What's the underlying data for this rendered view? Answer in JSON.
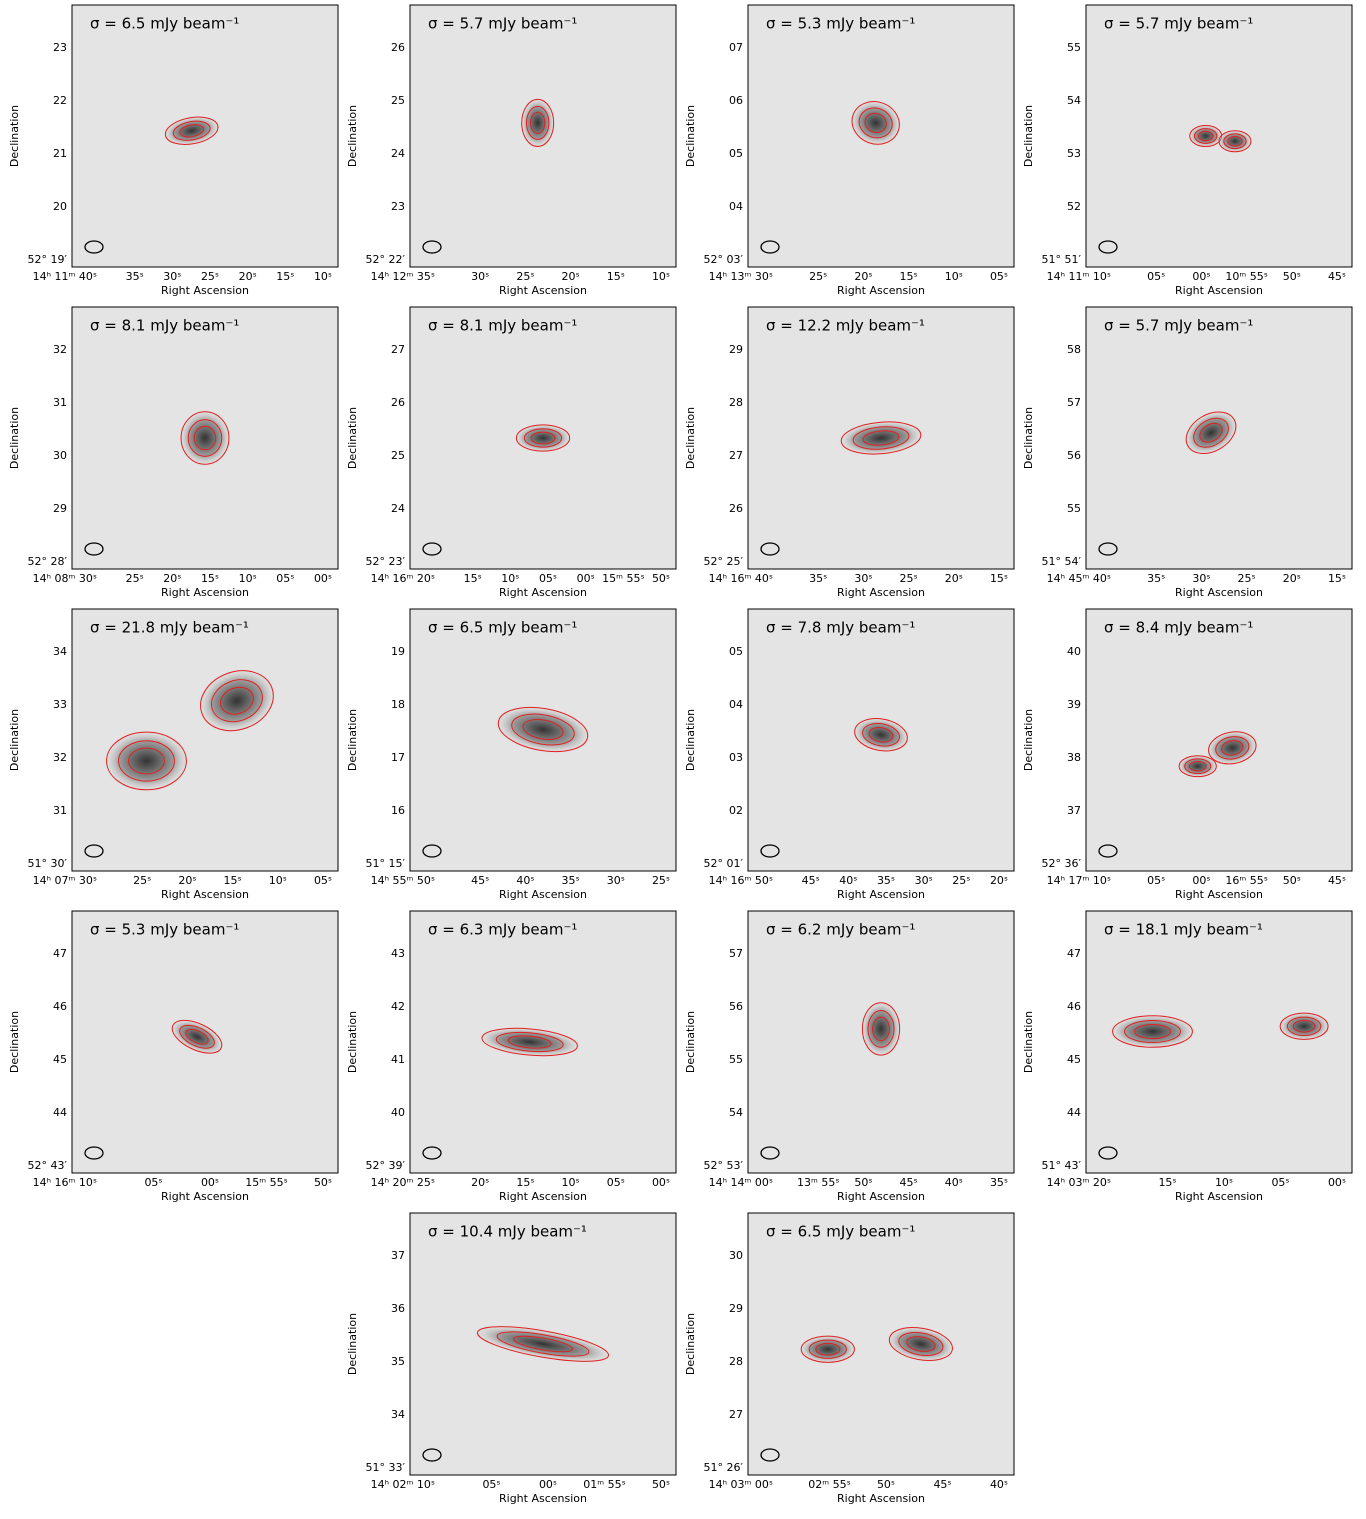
{
  "y_label": "Declination",
  "x_label": "Right Ascension",
  "panels": [
    {
      "sigma": "σ = 6.5 mJy beam⁻¹",
      "yticks": [
        "52° 19′",
        "20",
        "21",
        "22",
        "23"
      ],
      "xticks": [
        "14ʰ 11ᵐ 40ˢ",
        "35ˢ",
        "30ˢ",
        "25ˢ",
        "20ˢ",
        "15ˢ",
        "10ˢ"
      ]
    },
    {
      "sigma": "σ = 5.7 mJy beam⁻¹",
      "yticks": [
        "52° 22′",
        "23",
        "24",
        "25",
        "26"
      ],
      "xticks": [
        "14ʰ 12ᵐ 35ˢ",
        "30ˢ",
        "25ˢ",
        "20ˢ",
        "15ˢ",
        "10ˢ"
      ]
    },
    {
      "sigma": "σ = 5.3 mJy beam⁻¹",
      "yticks": [
        "52° 03′",
        "04",
        "05",
        "06",
        "07"
      ],
      "xticks": [
        "14ʰ 13ᵐ 30ˢ",
        "25ˢ",
        "20ˢ",
        "15ˢ",
        "10ˢ",
        "05ˢ"
      ]
    },
    {
      "sigma": "σ = 5.7 mJy beam⁻¹",
      "yticks": [
        "51° 51′",
        "52",
        "53",
        "54",
        "55"
      ],
      "xticks": [
        "14ʰ 11ᵐ 10ˢ",
        "05ˢ",
        "00ˢ",
        "10ᵐ 55ˢ",
        "50ˢ",
        "45ˢ"
      ]
    },
    {
      "sigma": "σ = 8.1 mJy beam⁻¹",
      "yticks": [
        "52° 28′",
        "29",
        "30",
        "31",
        "32"
      ],
      "xticks": [
        "14ʰ 08ᵐ 30ˢ",
        "25ˢ",
        "20ˢ",
        "15ˢ",
        "10ˢ",
        "05ˢ",
        "00ˢ"
      ]
    },
    {
      "sigma": "σ = 8.1 mJy beam⁻¹",
      "yticks": [
        "52° 23′",
        "24",
        "25",
        "26",
        "27"
      ],
      "xticks": [
        "14ʰ 16ᵐ 20ˢ",
        "15ˢ",
        "10ˢ",
        "05ˢ",
        "00ˢ",
        "15ᵐ 55ˢ",
        "50ˢ"
      ]
    },
    {
      "sigma": "σ = 12.2 mJy beam⁻¹",
      "yticks": [
        "52° 25′",
        "26",
        "27",
        "28",
        "29"
      ],
      "xticks": [
        "14ʰ 16ᵐ 40ˢ",
        "35ˢ",
        "30ˢ",
        "25ˢ",
        "20ˢ",
        "15ˢ"
      ]
    },
    {
      "sigma": "σ = 5.7 mJy beam⁻¹",
      "yticks": [
        "51° 54′",
        "55",
        "56",
        "57",
        "58"
      ],
      "xticks": [
        "14ʰ 45ᵐ 40ˢ",
        "35ˢ",
        "30ˢ",
        "25ˢ",
        "20ˢ",
        "15ˢ"
      ]
    },
    {
      "sigma": "σ = 21.8 mJy beam⁻¹",
      "yticks": [
        "51° 30′",
        "31",
        "32",
        "33",
        "34"
      ],
      "xticks": [
        "14ʰ 07ᵐ 30ˢ",
        "25ˢ",
        "20ˢ",
        "15ˢ",
        "10ˢ",
        "05ˢ"
      ]
    },
    {
      "sigma": "σ = 6.5 mJy beam⁻¹",
      "yticks": [
        "51° 15′",
        "16",
        "17",
        "18",
        "19"
      ],
      "xticks": [
        "14ʰ 55ᵐ 50ˢ",
        "45ˢ",
        "40ˢ",
        "35ˢ",
        "30ˢ",
        "25ˢ"
      ]
    },
    {
      "sigma": "σ = 7.8 mJy beam⁻¹",
      "yticks": [
        "52° 01′",
        "02",
        "03",
        "04",
        "05"
      ],
      "xticks": [
        "14ʰ 16ᵐ 50ˢ",
        "45ˢ",
        "40ˢ",
        "35ˢ",
        "30ˢ",
        "25ˢ",
        "20ˢ"
      ]
    },
    {
      "sigma": "σ = 8.4 mJy beam⁻¹",
      "yticks": [
        "52° 36′",
        "37",
        "38",
        "39",
        "40"
      ],
      "xticks": [
        "14ʰ 17ᵐ 10ˢ",
        "05ˢ",
        "00ˢ",
        "16ᵐ 55ˢ",
        "50ˢ",
        "45ˢ"
      ]
    },
    {
      "sigma": "σ = 5.3 mJy beam⁻¹",
      "yticks": [
        "52° 43′",
        "44",
        "45",
        "46",
        "47"
      ],
      "xticks": [
        "14ʰ 16ᵐ 10ˢ",
        "05ˢ",
        "00ˢ",
        "15ᵐ 55ˢ",
        "50ˢ"
      ]
    },
    {
      "sigma": "σ = 6.3 mJy beam⁻¹",
      "yticks": [
        "52° 39′",
        "40",
        "41",
        "42",
        "43"
      ],
      "xticks": [
        "14ʰ 20ᵐ 25ˢ",
        "20ˢ",
        "15ˢ",
        "10ˢ",
        "05ˢ",
        "00ˢ"
      ]
    },
    {
      "sigma": "σ = 6.2 mJy beam⁻¹",
      "yticks": [
        "52° 53′",
        "54",
        "55",
        "56",
        "57"
      ],
      "xticks": [
        "14ʰ 14ᵐ 00ˢ",
        "13ᵐ 55ˢ",
        "50ˢ",
        "45ˢ",
        "40ˢ",
        "35ˢ"
      ]
    },
    {
      "sigma": "σ = 18.1 mJy beam⁻¹",
      "yticks": [
        "51° 43′",
        "44",
        "45",
        "46",
        "47"
      ],
      "xticks": [
        "14ʰ 03ᵐ 20ˢ",
        "15ˢ",
        "10ˢ",
        "05ˢ",
        "00ˢ"
      ]
    },
    {
      "sigma": "σ = 10.4 mJy beam⁻¹",
      "yticks": [
        "51° 33′",
        "34",
        "35",
        "36",
        "37"
      ],
      "xticks": [
        "14ʰ 02ᵐ 10ˢ",
        "05ˢ",
        "00ˢ",
        "01ᵐ 55ˢ",
        "50ˢ"
      ]
    },
    {
      "sigma": "σ = 6.5 mJy beam⁻¹",
      "yticks": [
        "51° 26′",
        "27",
        "28",
        "29",
        "30"
      ],
      "xticks": [
        "14ʰ 03ᵐ 00ˢ",
        "02ᵐ 55ˢ",
        "50ˢ",
        "45ˢ",
        "40ˢ"
      ]
    }
  ]
}
